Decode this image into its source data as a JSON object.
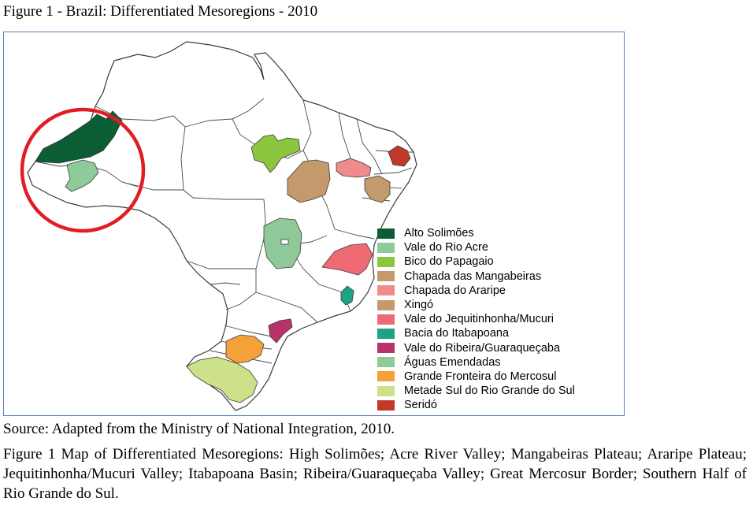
{
  "figure": {
    "title": "Figure 1 - Brazil: Differentiated Mesoregions - 2010",
    "source": "Source: Adapted from the Ministry of National Integration, 2010.",
    "caption": "Figure 1 Map of Differentiated Mesoregions: High Solimões; Acre River Valley; Mangabeiras Plateau; Araripe Plateau; Jequitinhonha/Mucuri Valley; Itabapoana Basin; Ribeira/Guaraqueçaba Valley; Great Mercosur Border; Southern Half of Rio Grande do Sul."
  },
  "map": {
    "base_fill": "#ffffff",
    "border_color": "#3a3a3a",
    "frame_color": "#5b7fb8",
    "highlight_circle_color": "#e31b23"
  },
  "legend": [
    {
      "label": "Alto Solimões",
      "color": "#0b5e34"
    },
    {
      "label": "Vale do Rio Acre",
      "color": "#8ecb9a"
    },
    {
      "label": "Bico do Papagaio",
      "color": "#8cc63e"
    },
    {
      "label": "Chapada das Mangabeiras",
      "color": "#c49a6c"
    },
    {
      "label": "Chapada do Araripe",
      "color": "#ef8b8b"
    },
    {
      "label": "Xingó",
      "color": "#c49a6c"
    },
    {
      "label": "Vale do Jequitinhonha/Mucuri",
      "color": "#ef6b73"
    },
    {
      "label": "Bacia do Itabapoana",
      "color": "#1ea382"
    },
    {
      "label": "Vale do Ribeira/Guaraqueçaba",
      "color": "#b8336a"
    },
    {
      "label": "Águas Emendadas",
      "color": "#8fc99a"
    },
    {
      "label": "Grande Fronteira do Mercosul",
      "color": "#f4a13a"
    },
    {
      "label": "Metade Sul do Rio Grande do Sul",
      "color": "#cde08a"
    },
    {
      "label": "Seridó",
      "color": "#c0392b"
    }
  ]
}
